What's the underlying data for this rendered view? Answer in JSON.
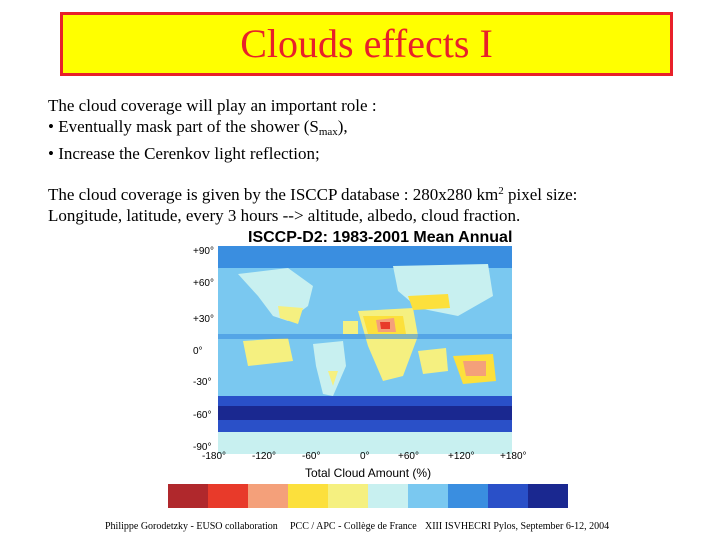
{
  "slide": {
    "title": "Clouds effects I",
    "intro_line": "The cloud coverage will play an important role :",
    "bullet1_prefix": "• Eventually mask part of the shower (S",
    "bullet1_sub": "max",
    "bullet1_suffix": "),",
    "bullet2": "• Increase the Cerenkov light reflection;",
    "isccp_line_prefix": "The cloud coverage is given by the ISCCP database : 280x280 km",
    "isccp_line_sup": "2",
    "isccp_line_suffix": " pixel size:",
    "isccp_line2": " Longitude, latitude, every 3 hours --> altitude, albedo, cloud fraction."
  },
  "figure": {
    "map_title": "ISCCP-D2: 1983-2001 Mean Annual",
    "lat_labels": [
      "+90°",
      "+60°",
      "+30°",
      "0°",
      "-30°",
      "-60°",
      "-90°"
    ],
    "lon_labels": [
      "-180°",
      "-120°",
      "-60°",
      "0°",
      "+60°",
      "+120°",
      "+180°"
    ],
    "colorbar_label": "Total Cloud Amount (%)",
    "colorbar_colors": [
      "#b0282c",
      "#e83a2a",
      "#f4a07a",
      "#fce03c",
      "#f5f080",
      "#c8f0f0",
      "#7ac8f0",
      "#3a8ee0",
      "#2a50c8",
      "#1a2890"
    ]
  },
  "footer": {
    "left": "Philippe Gorodetzky - EUSO collaboration",
    "center": "PCC / APC - Collège de France",
    "right": "XIII ISVHECRI  Pylos, September 6-12, 2004"
  }
}
